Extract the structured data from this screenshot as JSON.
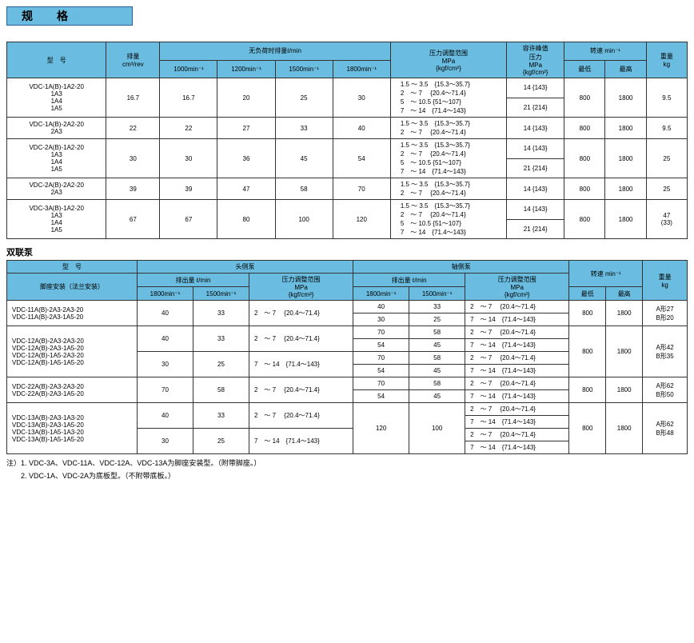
{
  "title": "规",
  "title2": "格",
  "t1": {
    "h": {
      "model": "型　号",
      "disp": "排量",
      "disp_u": "cm³/rev",
      "noload": "无负荷时排量ℓ/min",
      "r1000": "1000min⁻¹",
      "r1200": "1200min⁻¹",
      "r1500": "1500min⁻¹",
      "r1800": "1800min⁻¹",
      "padj": "压力调整范围",
      "padj_u": "MPa",
      "padj_u2": "{kgf/cm²}",
      "peak": "容许峰值",
      "peak2": "压力",
      "peak_u": "MPa",
      "peak_u2": "{kgf/cm²}",
      "speed": "转速 min⁻¹",
      "min": "最低",
      "max": "最高",
      "wt": "重量",
      "wt_u": "kg"
    },
    "rows": [
      {
        "m": [
          "VDC-1A(B)-1A2-20",
          "1A3",
          "1A4",
          "1A5"
        ],
        "disp": "16.7",
        "v": [
          "16.7",
          "20",
          "25",
          "30"
        ],
        "pr": [
          "1.5 ～ 3.5　{15.3～35.7}",
          "2　～ 7　 {20.4～71.4}",
          "5　～ 10.5 {51～107}",
          "7　～ 14　{71.4～143}"
        ],
        "peak": [
          "14 {143}",
          "21 {214}"
        ],
        "min": "800",
        "max": "1800",
        "wt": "9.5"
      },
      {
        "m": [
          "VDC-1A(B)-2A2-20",
          "2A3"
        ],
        "disp": "22",
        "v": [
          "22",
          "27",
          "33",
          "40"
        ],
        "pr": [
          "1.5 ～ 3.5　{15.3～35.7}",
          "2　～ 7　 {20.4～71.4}"
        ],
        "peak": [
          "14 {143}"
        ],
        "min": "800",
        "max": "1800",
        "wt": "9.5"
      },
      {
        "m": [
          "VDC-2A(B)-1A2-20",
          "1A3",
          "1A4",
          "1A5"
        ],
        "disp": "30",
        "v": [
          "30",
          "36",
          "45",
          "54"
        ],
        "pr": [
          "1.5 ～ 3.5　{15.3～35.7}",
          "2　～ 7　 {20.4～71.4}",
          "5　～ 10.5 {51～107}",
          "7　～ 14　{71.4～143}"
        ],
        "peak": [
          "14 {143}",
          "21 {214}"
        ],
        "min": "800",
        "max": "1800",
        "wt": "25"
      },
      {
        "m": [
          "VDC-2A(B)-2A2-20",
          "2A3"
        ],
        "disp": "39",
        "v": [
          "39",
          "47",
          "58",
          "70"
        ],
        "pr": [
          "1.5 ～ 3.5　{15.3～35.7}",
          "2　～ 7　 {20.4～71.4}"
        ],
        "peak": [
          "14 {143}"
        ],
        "min": "800",
        "max": "1800",
        "wt": "25"
      },
      {
        "m": [
          "VDC-3A(B)-1A2-20",
          "1A3",
          "1A4",
          "1A5"
        ],
        "disp": "67",
        "v": [
          "67",
          "80",
          "100",
          "120"
        ],
        "pr": [
          "1.5 ～ 3.5　{15.3～35.7}",
          "2　～ 7　 {20.4～71.4}",
          "5　～ 10.5 {51～107}",
          "7　～ 14　{71.4～143}"
        ],
        "peak": [
          "14 {143}",
          "21 {214}"
        ],
        "min": "800",
        "max": "1800",
        "wt": "47\n(33)"
      }
    ]
  },
  "sec2": "双联泵",
  "t2": {
    "h": {
      "model": "型　号",
      "foot": "脚座安装（法兰安装）",
      "head": "头侧泵",
      "shaft": "轴侧泵",
      "out": "排出量 ℓ/min",
      "padj": "压力调整范围",
      "padj_u": "MPa",
      "padj_u2": "{kgf/cm²}",
      "r1800": "1800min⁻¹",
      "r1500": "1500min⁻¹",
      "speed": "转速 min⁻¹",
      "min": "最低",
      "max": "最高",
      "wt": "重量",
      "wt_u": "kg"
    },
    "g": [
      {
        "models": [
          "VDC-11A(B)-2A3-2A3-20",
          "VDC-11A(B)-2A3-1A5-20"
        ],
        "blocks": [
          {
            "h": [
              "40",
              "33",
              "2　～ 7　 {20.4～71.4}"
            ],
            "s": [
              [
                "40",
                "33",
                "2　～ 7　 {20.4～71.4}"
              ],
              [
                "30",
                "25",
                "7　～ 14　{71.4～143}"
              ]
            ]
          }
        ],
        "min": "800",
        "max": "1800",
        "wt": [
          "A形27",
          "B形20"
        ]
      },
      {
        "models": [
          "VDC-12A(B)-2A3-2A3-20",
          "VDC-12A(B)-2A3-1A5-20",
          "VDC-12A(B)-1A5-2A3-20",
          "VDC-12A(B)-1A5-1A5-20"
        ],
        "blocks": [
          {
            "h": [
              "40",
              "33",
              "2　～ 7　 {20.4～71.4}"
            ],
            "s": [
              [
                "70",
                "58",
                "2　～ 7　 {20.4～71.4}"
              ],
              [
                "54",
                "45",
                "7　～ 14　{71.4～143}"
              ]
            ]
          },
          {
            "h": [
              "30",
              "25",
              "7　～ 14　{71.4～143}"
            ],
            "s": [
              [
                "70",
                "58",
                "2　～ 7　 {20.4～71.4}"
              ],
              [
                "54",
                "45",
                "7　～ 14　{71.4～143}"
              ]
            ]
          }
        ],
        "min": "800",
        "max": "1800",
        "wt": [
          "A形42",
          "B形35"
        ]
      },
      {
        "models": [
          "VDC-22A(B)-2A3-2A3-20",
          "VDC-22A(B)-2A3-1A5-20"
        ],
        "blocks": [
          {
            "h": [
              "70",
              "58",
              "2　～ 7　 {20.4～71.4}"
            ],
            "s": [
              [
                "70",
                "58",
                "2　～ 7　 {20.4～71.4}"
              ],
              [
                "54",
                "45",
                "7　～ 14　{71.4～143}"
              ]
            ]
          }
        ],
        "min": "800",
        "max": "1800",
        "wt": [
          "A形62",
          "B形50"
        ]
      },
      {
        "models": [
          "VDC-13A(B)-2A3-1A3-20",
          "VDC-13A(B)-2A3-1A5-20",
          "VDC-13A(B)-1A5-1A3-20",
          "VDC-13A(B)-1A5-1A5-20"
        ],
        "blocks": [
          {
            "h": [
              "40",
              "33",
              "2　～ 7　 {20.4～71.4}"
            ],
            "s": [
              [
                "",
                "",
                "2　～ 7　 {20.4～71.4}"
              ],
              [
                "",
                "",
                "7　～ 14　{71.4～143}"
              ]
            ]
          },
          {
            "h": [
              "30",
              "25",
              "7　～ 14　{71.4～143}"
            ],
            "s": [
              [
                "",
                "",
                "2　～ 7　 {20.4～71.4}"
              ],
              [
                "",
                "",
                "7　～ 14　{71.4～143}"
              ]
            ]
          }
        ],
        "shaft_merge": {
          "v1800": "120",
          "v1500": "100"
        },
        "min": "800",
        "max": "1800",
        "wt": [
          "A形62",
          "B形48"
        ]
      }
    ]
  },
  "note1": "注）1. VDC-3A、VDC-11A、VDC-12A、VDC-13A为脚座安装型。（附带脚座。）",
  "note2": "　　2. VDC-1A、VDC-2A为底板型。（不附带底板。）"
}
